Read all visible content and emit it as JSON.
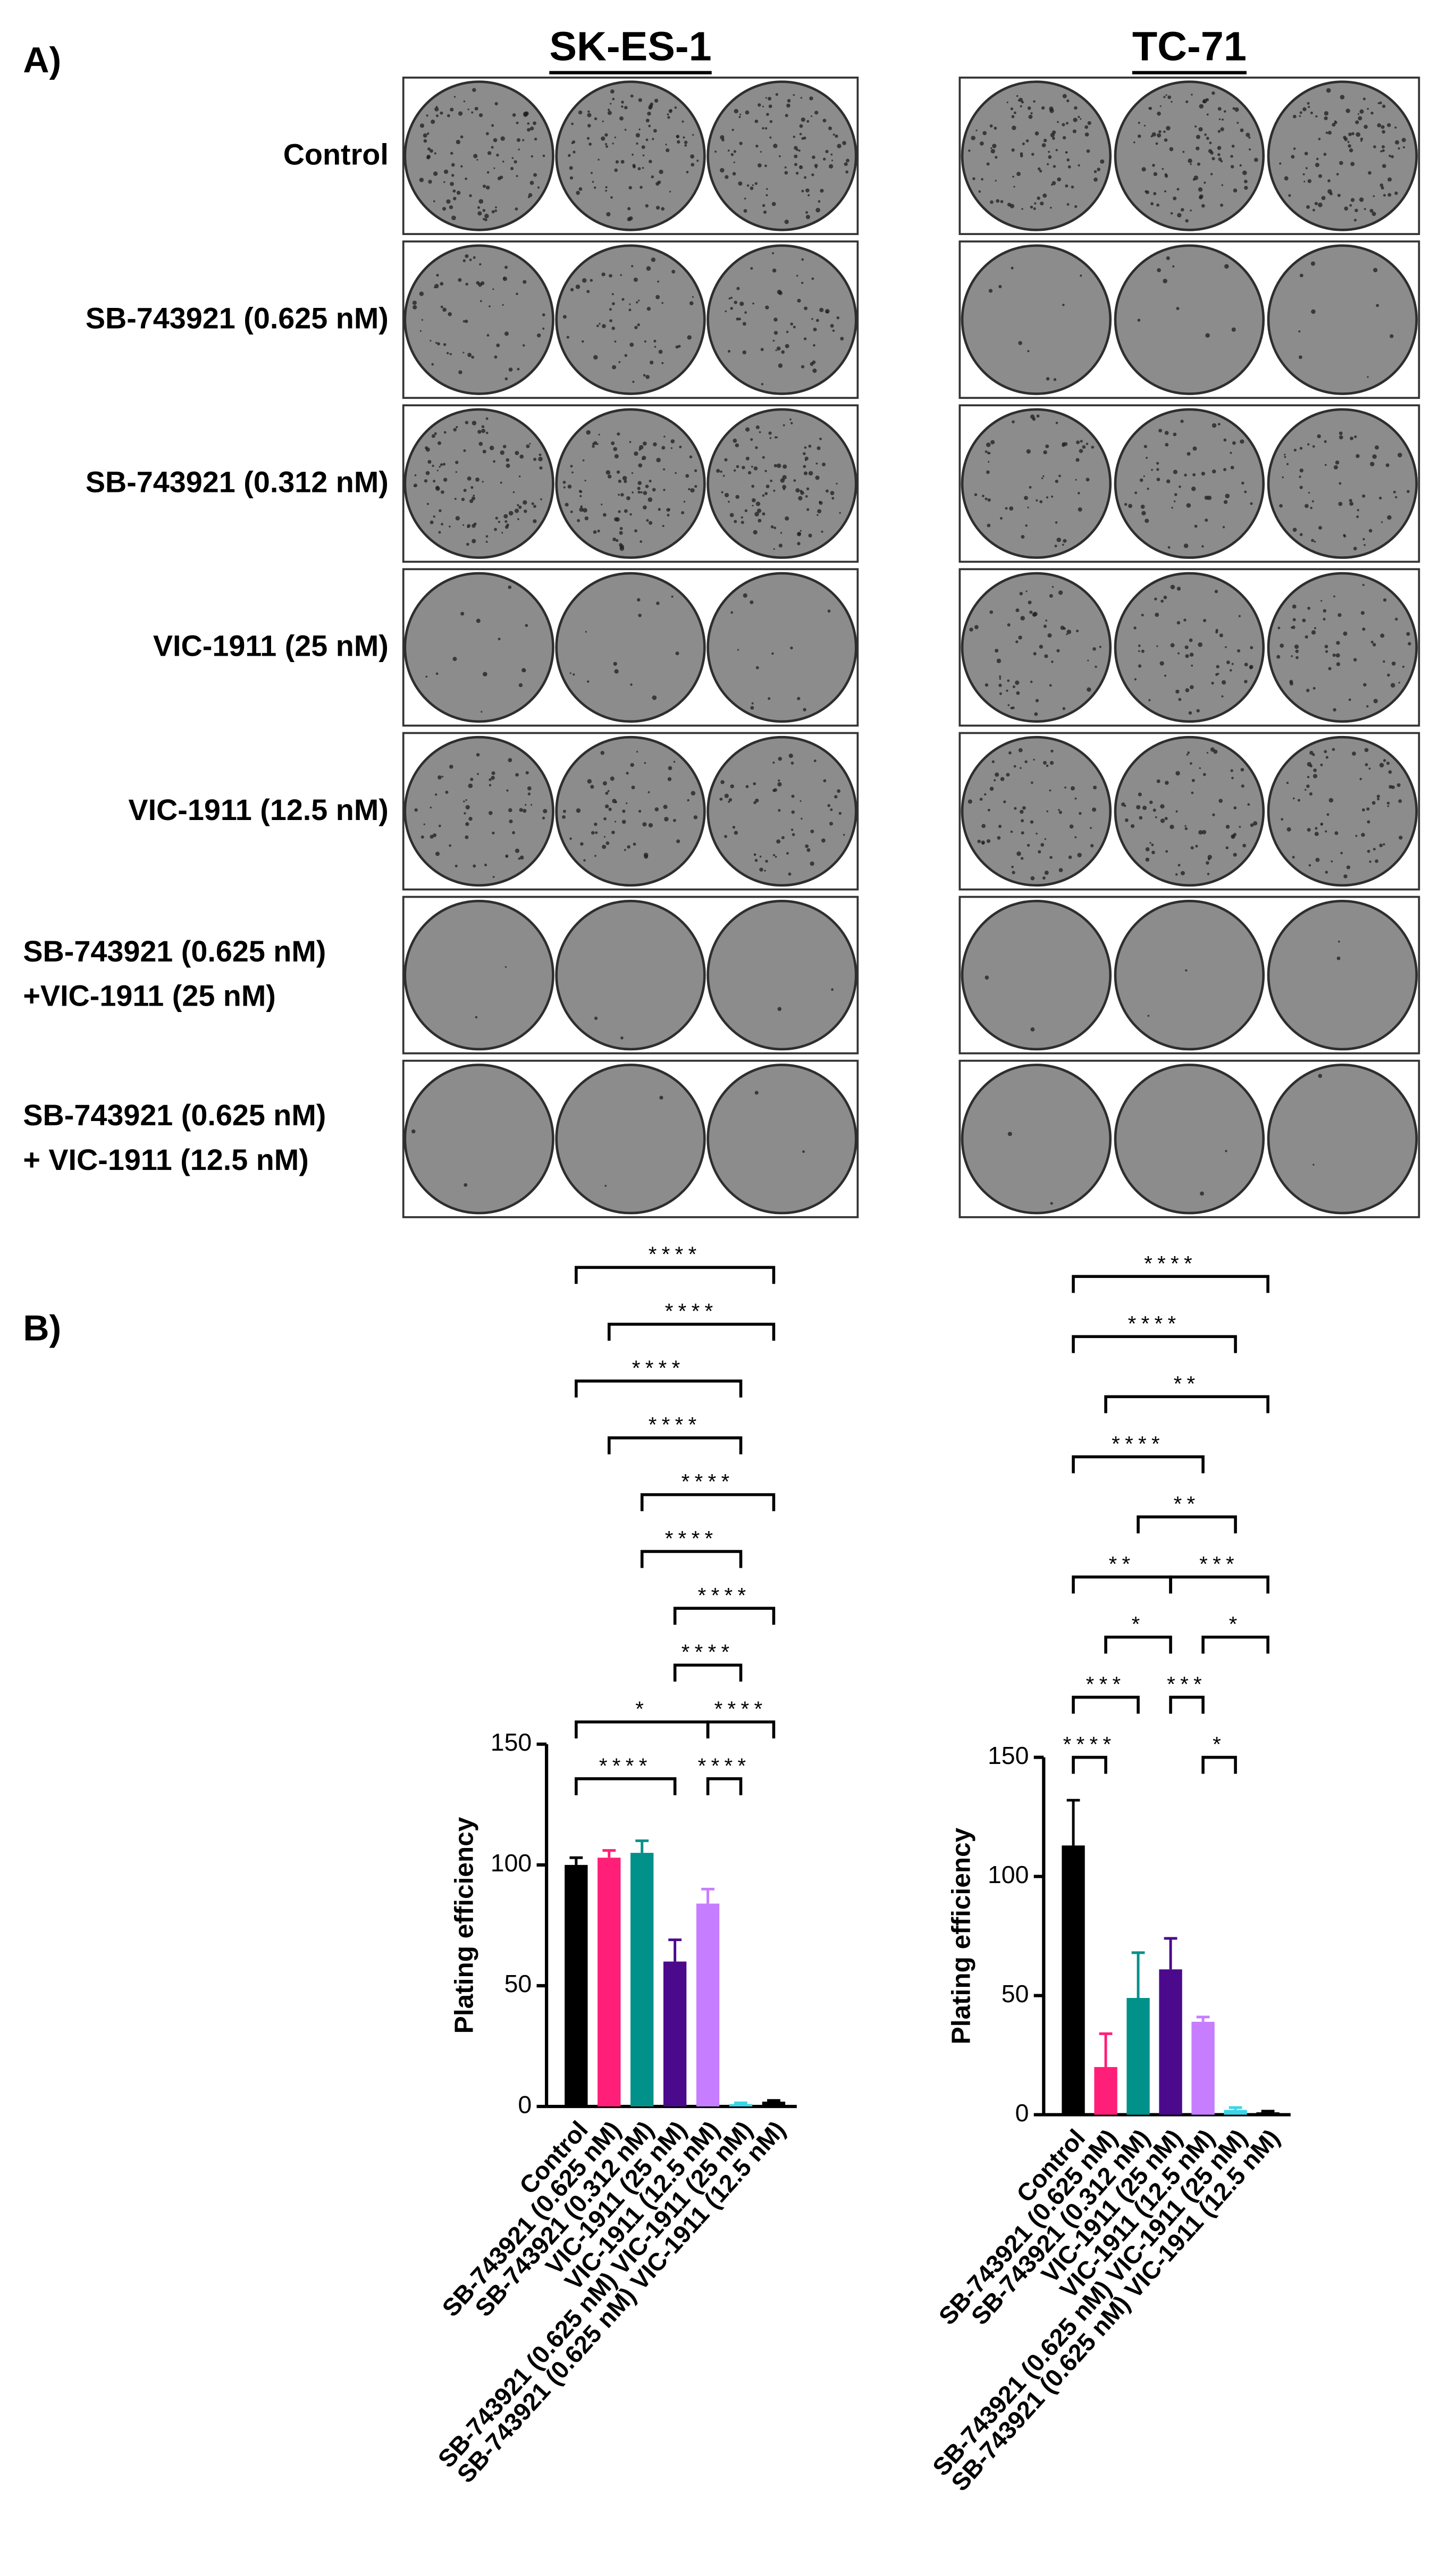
{
  "panel_a": {
    "label": "A)",
    "columns": [
      "SK-ES-1",
      "TC-71"
    ],
    "rows": [
      [
        "Control"
      ],
      [
        "SB-743921 (0.625 nM)"
      ],
      [
        "SB-743921 (0.312 nM)"
      ],
      [
        "VIC-1911 (25 nM)"
      ],
      [
        "VIC-1911 (12.5 nM)"
      ],
      [
        "SB-743921 (0.625 nM)",
        "+VIC-1911 (25 nM)"
      ],
      [
        "SB-743921 (0.625 nM)",
        "+ VIC-1911 (12.5 nM)"
      ]
    ]
  },
  "panel_b": {
    "label": "B)"
  },
  "chart_data": [
    {
      "type": "bar",
      "ylabel": "Plating efficiency",
      "categories": [
        "Control",
        "SB-743921 (0.625 nM)",
        "SB-743921 (0.312 nM)",
        "VIC-1911 (25 nM)",
        "VIC-1911 (12.5 nM)",
        "SB-743921 (0.625 nM) VIC-1911 (25 nM)",
        "SB-743921 (0.625 nM) VIC-1911 (12.5 nM)"
      ],
      "values": [
        100,
        103,
        105,
        60,
        84,
        1,
        2
      ],
      "errors": [
        3,
        3,
        5,
        9,
        6,
        0.5,
        0.5
      ],
      "colors": [
        "#000000",
        "#ff1f78",
        "#00918a",
        "#4b0a8c",
        "#c77dff",
        "#3ad4e8",
        "#000000"
      ],
      "ylim": [
        0,
        150
      ],
      "yticks": [
        0,
        50,
        100,
        150
      ],
      "brackets": [
        [
          {
            "from": 0,
            "to": 3,
            "label": "****"
          },
          {
            "from": 4,
            "to": 5,
            "label": "****"
          }
        ],
        [
          {
            "from": 0,
            "to": 4,
            "label": "*"
          },
          {
            "from": 4,
            "to": 6,
            "label": "****"
          }
        ],
        [
          {
            "from": 3,
            "to": 5,
            "label": "****"
          }
        ],
        [
          {
            "from": 3,
            "to": 6,
            "label": "****"
          }
        ],
        [
          {
            "from": 2,
            "to": 5,
            "label": "****"
          }
        ],
        [
          {
            "from": 2,
            "to": 6,
            "label": "****"
          }
        ],
        [
          {
            "from": 1,
            "to": 5,
            "label": "****"
          }
        ],
        [
          {
            "from": 0,
            "to": 5,
            "label": "****"
          }
        ],
        [
          {
            "from": 1,
            "to": 6,
            "label": "****"
          }
        ],
        [
          {
            "from": 0,
            "to": 6,
            "label": "****"
          }
        ]
      ]
    },
    {
      "type": "bar",
      "ylabel": "Plating efficiency",
      "categories": [
        "Control",
        "SB-743921 (0.625 nM)",
        "SB-743921 (0.312 nM)",
        "VIC-1911 (25 nM)",
        "VIC-1911 (12.5 nM)",
        "SB-743921 (0.625 nM) VIC-1911 (25 nM)",
        "SB-743921 (0.625 nM) VIC-1911 (12.5 nM)"
      ],
      "values": [
        113,
        20,
        49,
        61,
        39,
        2,
        1
      ],
      "errors": [
        19,
        14,
        19,
        13,
        2,
        1,
        0.5
      ],
      "colors": [
        "#000000",
        "#ff1f78",
        "#00918a",
        "#4b0a8c",
        "#c77dff",
        "#3ad4e8",
        "#000000"
      ],
      "ylim": [
        0,
        150
      ],
      "yticks": [
        0,
        50,
        100,
        150
      ],
      "brackets": [
        [
          {
            "from": 0,
            "to": 1,
            "label": "****"
          },
          {
            "from": 4,
            "to": 5,
            "label": "*"
          }
        ],
        [
          {
            "from": 0,
            "to": 2,
            "label": "***"
          },
          {
            "from": 3,
            "to": 4,
            "label": "***"
          }
        ],
        [
          {
            "from": 1,
            "to": 3,
            "label": "*"
          },
          {
            "from": 4,
            "to": 6,
            "label": "*"
          }
        ],
        [
          {
            "from": 0,
            "to": 3,
            "label": "**"
          },
          {
            "from": 3,
            "to": 6,
            "label": "***"
          }
        ],
        [
          {
            "from": 2,
            "to": 5,
            "label": "**"
          }
        ],
        [
          {
            "from": 0,
            "to": 4,
            "label": "****"
          }
        ],
        [
          {
            "from": 1,
            "to": 6,
            "label": "**"
          }
        ],
        [
          {
            "from": 0,
            "to": 5,
            "label": "****"
          }
        ],
        [
          {
            "from": 0,
            "to": 6,
            "label": "****"
          }
        ]
      ]
    }
  ]
}
